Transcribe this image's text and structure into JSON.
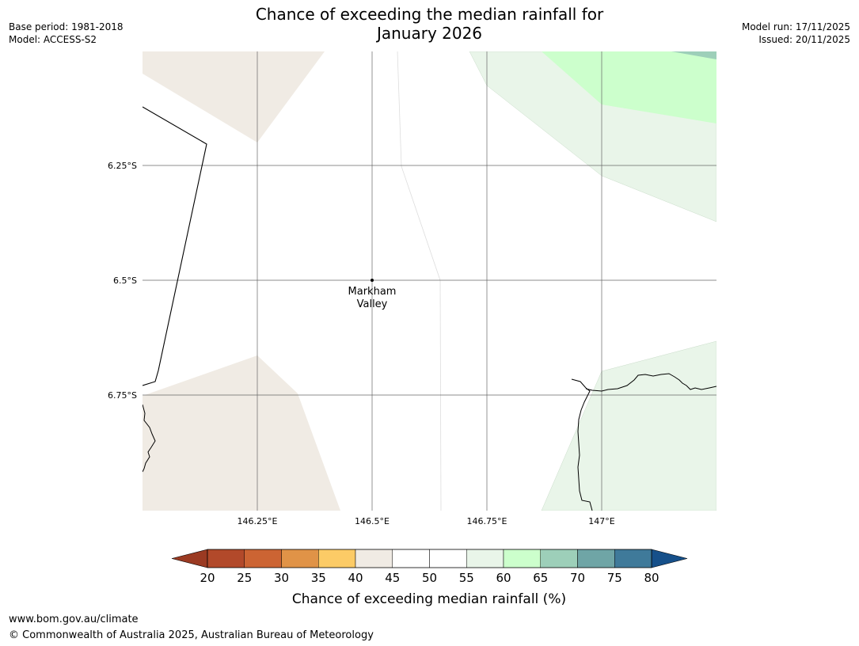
{
  "title": {
    "line1": "Chance of exceeding the median rainfall for",
    "line2": "January 2026"
  },
  "meta": {
    "base_period": "Base period: 1981-2018",
    "model": "Model: ACCESS-S2",
    "model_run": "Model run: 17/11/2025",
    "issued": "Issued: 20/11/2025"
  },
  "map": {
    "lat_labels": [
      "6.25°S",
      "6.5°S",
      "6.75°S"
    ],
    "lon_labels": [
      "146.25°E",
      "146.5°E",
      "146.75°E",
      "147°E"
    ],
    "place": {
      "name_line1": "Markham",
      "name_line2": "Valley"
    }
  },
  "colorbar": {
    "label": "Chance of exceeding median rainfall (%)",
    "ticks": [
      "20",
      "25",
      "30",
      "35",
      "40",
      "45",
      "50",
      "55",
      "60",
      "65",
      "70",
      "75",
      "80"
    ],
    "colors": [
      "#b2492a",
      "#cc6433",
      "#e09347",
      "#fccb66",
      "#f0ebe4",
      "#ffffff",
      "#ffffff",
      "#e9f5e9",
      "#ccffcc",
      "#9dcfb9",
      "#6fa5a6",
      "#3f7a9a"
    ],
    "low_extend_color": "#9b3a22",
    "high_extend_color": "#16508a"
  },
  "footer": {
    "url": "www.bom.gov.au/climate",
    "copyright": "© Commonwealth of Australia 2025, Australian Bureau of Meteorology"
  }
}
